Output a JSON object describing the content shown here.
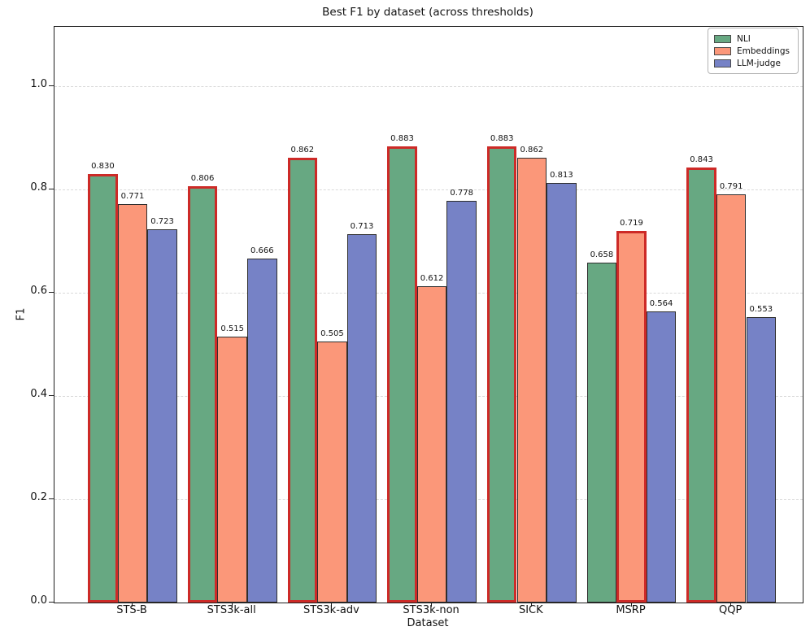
{
  "chart_data": {
    "type": "bar",
    "title": "Best F1 by dataset (across thresholds)",
    "xlabel": "Dataset",
    "ylabel": "F1",
    "categories": [
      "STS-B",
      "STS3k-all",
      "STS3k-adv",
      "STS3k-non",
      "SICK",
      "MSRP",
      "QQP"
    ],
    "series": [
      {
        "name": "NLI",
        "color": "#67a882",
        "values": [
          0.83,
          0.806,
          0.862,
          0.883,
          0.883,
          0.658,
          0.843
        ]
      },
      {
        "name": "Embeddings",
        "color": "#fb9779",
        "values": [
          0.771,
          0.515,
          0.505,
          0.612,
          0.862,
          0.719,
          0.791
        ]
      },
      {
        "name": "LLM-judge",
        "color": "#7682c6",
        "values": [
          0.723,
          0.666,
          0.713,
          0.778,
          0.813,
          0.564,
          0.553
        ]
      }
    ],
    "value_label_format": "3-decimals",
    "highlight_rule": "best bar in each category outlined in red",
    "highlight_edge_color": "#cd2a27",
    "bar_edge_color": "#2e2e2e",
    "grid_color": "#d9d9d9",
    "grid_style": "dashed-horizontal",
    "yticks": [
      0.0,
      0.2,
      0.4,
      0.6,
      0.8,
      1.0
    ],
    "ylim": [
      0,
      1.115
    ],
    "legend_position": "upper right",
    "legend_entries": [
      "NLI",
      "Embeddings",
      "LLM-judge"
    ]
  }
}
